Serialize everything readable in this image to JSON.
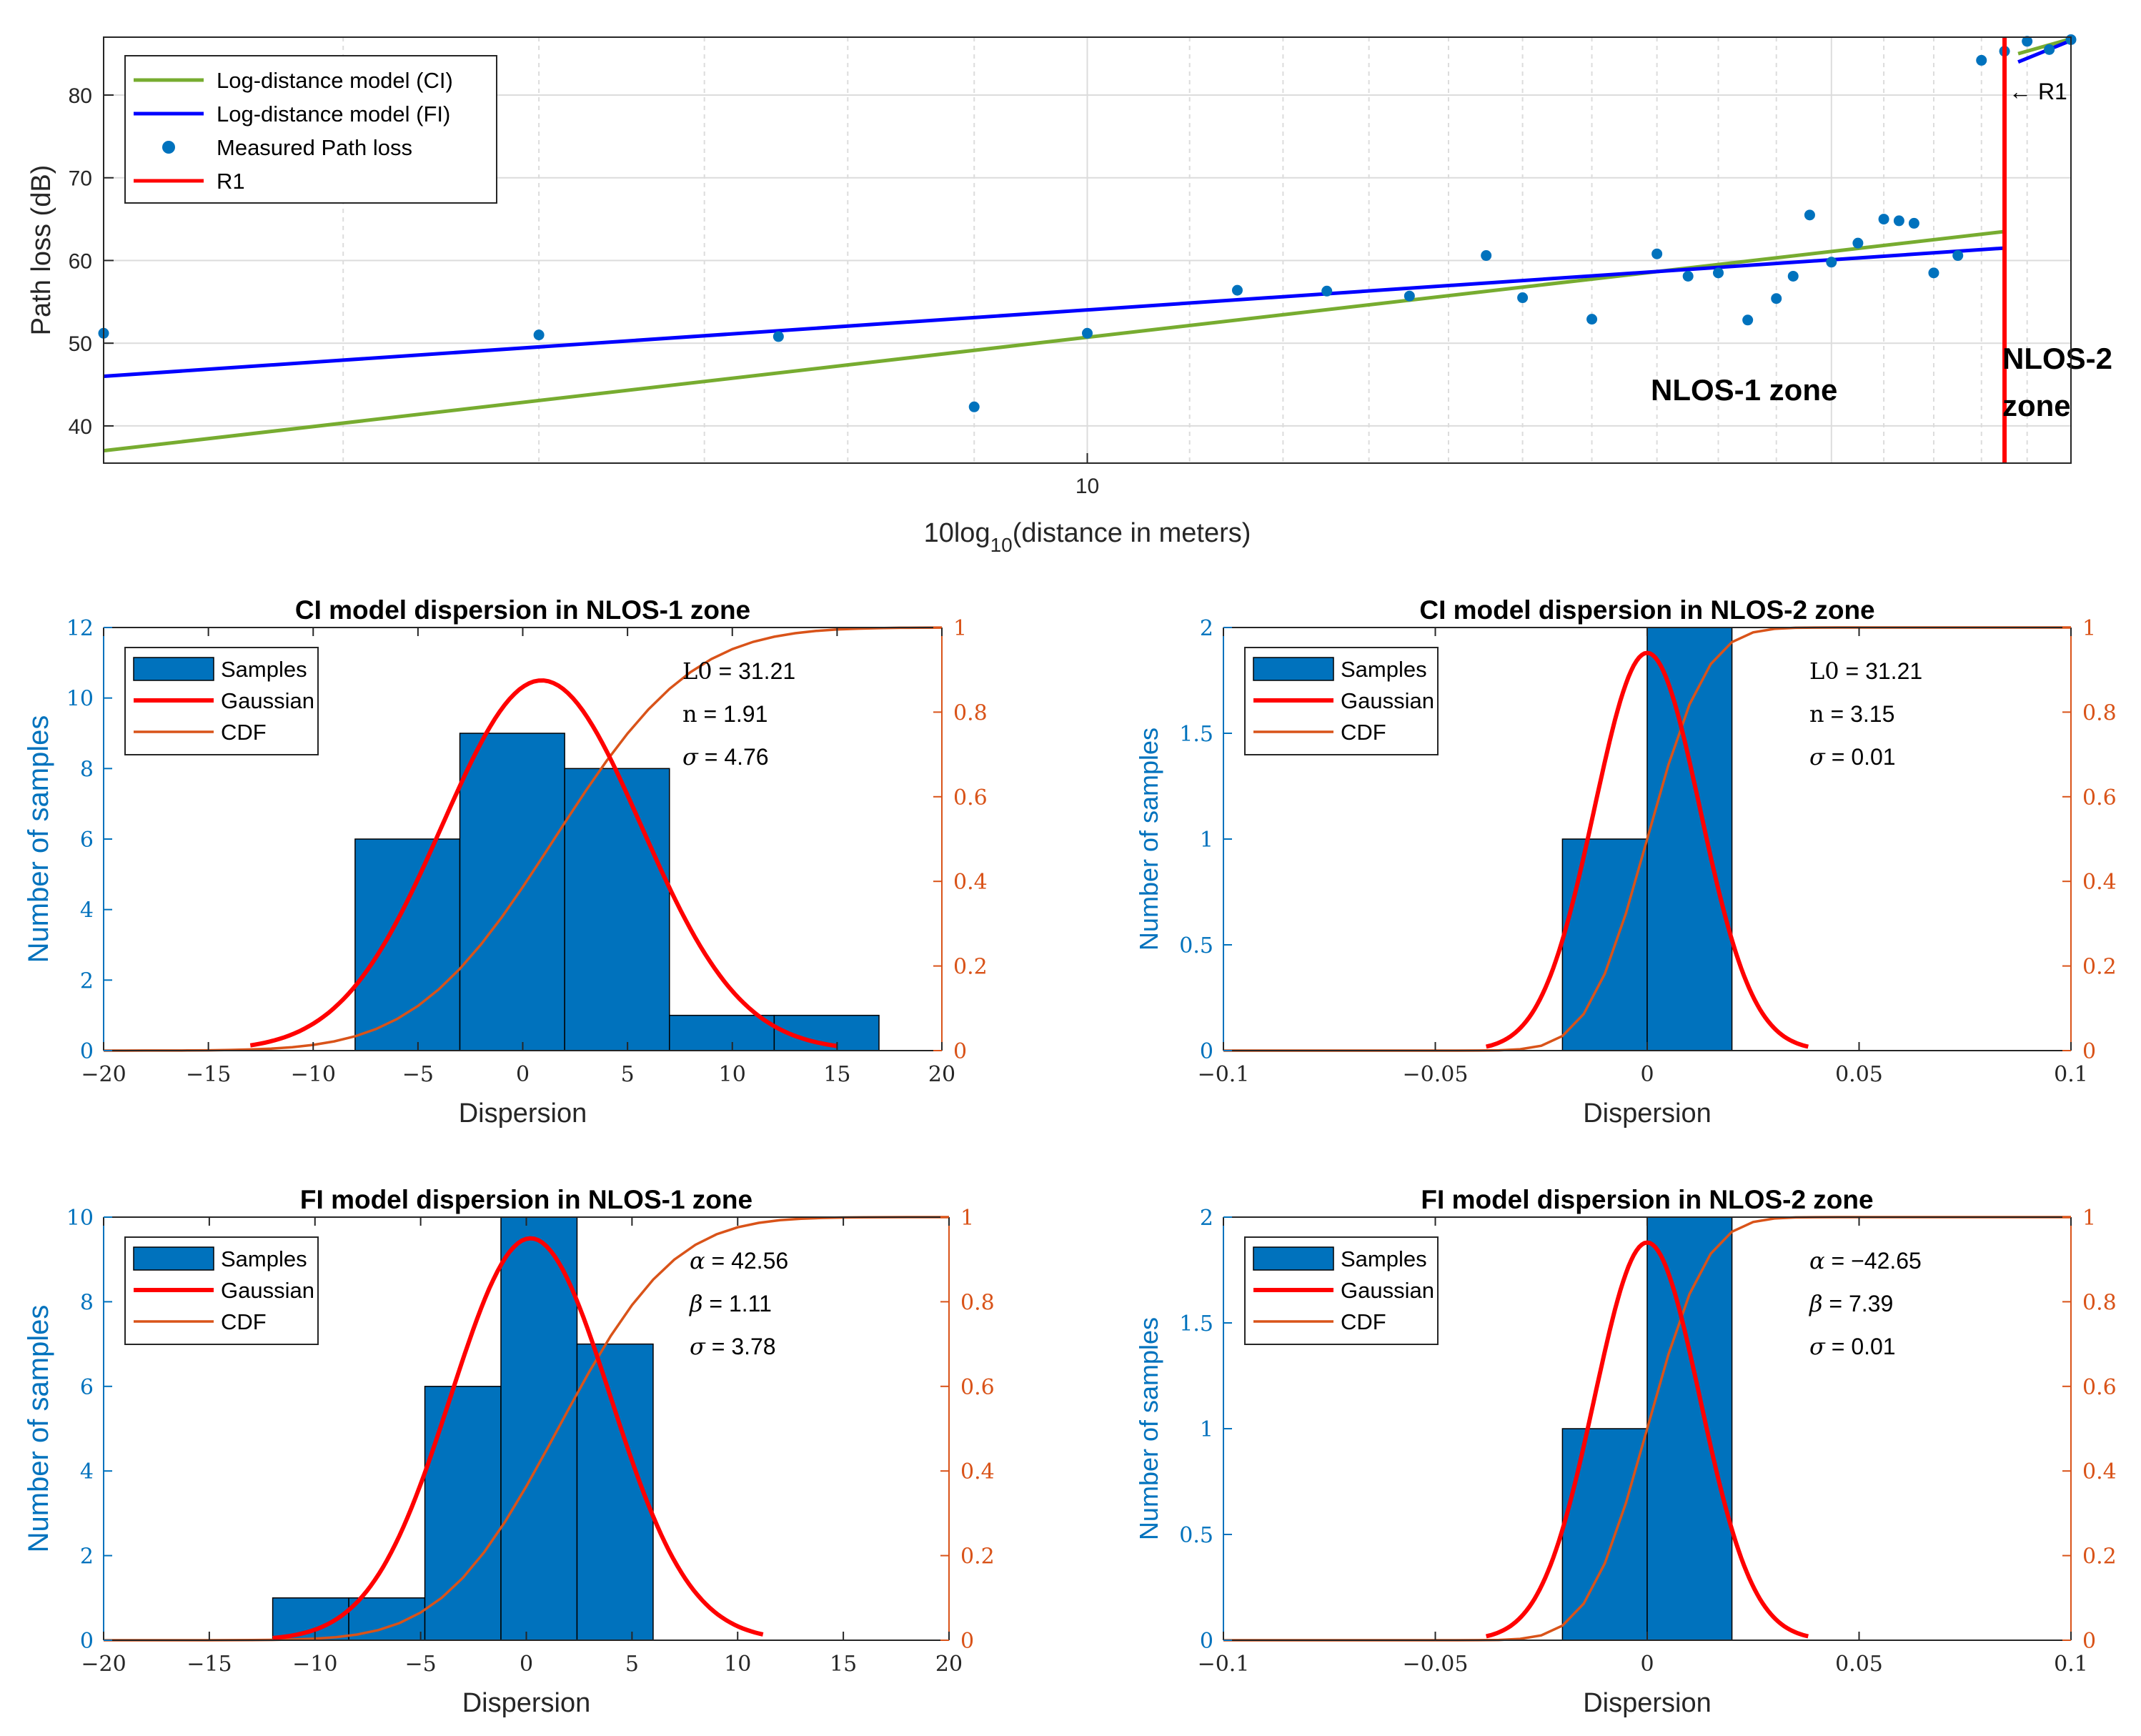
{
  "colors": {
    "ci": "#77ac30",
    "fi": "#0000ff",
    "measured": "#0072bd",
    "r1": "#ff0000",
    "bar": "#0072bd",
    "gauss": "#ff0000",
    "cdf": "#d95319",
    "left_axis": "#0072bd",
    "right_axis": "#d95319"
  },
  "chart_data": [
    {
      "id": "top",
      "type": "line",
      "xlabel_prefix": "10log",
      "xlabel_sub": "10",
      "xlabel_suffix": "(distance in meters)",
      "ylabel": "Path loss (dB)",
      "xscale": "log",
      "xlim": [
        4,
        25
      ],
      "ylim": [
        35.5,
        87
      ],
      "xtick_labels": [
        "10"
      ],
      "xtick_values": [
        10
      ],
      "yticks": [
        40,
        50,
        60,
        70,
        80
      ],
      "grid": true,
      "legend": [
        "Log-distance model (CI)",
        "Log-distance model (FI)",
        "Measured Path loss",
        "R1"
      ],
      "legend_position": "top-left",
      "ci_model": {
        "x": [
          4,
          23.5
        ],
        "y": [
          37.0,
          63.5
        ]
      },
      "fi_model": {
        "x": [
          4,
          23.5
        ],
        "y": [
          46.0,
          61.5
        ]
      },
      "ci_model_zone2": {
        "x": [
          23.8,
          25
        ],
        "y": [
          85.0,
          86.8
        ]
      },
      "fi_model_zone2": {
        "x": [
          23.8,
          25
        ],
        "y": [
          84.0,
          86.6
        ]
      },
      "r1_x": 23.5,
      "r1_label": "← R1",
      "measured": {
        "x": [
          4.0,
          6.0,
          7.5,
          9.0,
          10.0,
          11.5,
          12.5,
          13.5,
          14.5,
          15.0,
          16.0,
          17.0,
          17.5,
          18.0,
          18.5,
          19.0,
          19.3,
          19.6,
          20.0,
          20.5,
          21.0,
          21.3,
          21.6,
          22.0,
          22.5,
          23.0,
          23.5,
          24.0,
          24.5,
          25.0
        ],
        "y": [
          51.2,
          51.0,
          50.8,
          42.3,
          51.2,
          56.4,
          56.3,
          55.7,
          60.6,
          55.5,
          52.9,
          60.8,
          58.1,
          58.5,
          52.8,
          55.4,
          58.1,
          65.5,
          59.8,
          62.1,
          65.0,
          64.8,
          64.5,
          58.5,
          60.6,
          84.2,
          85.3,
          86.5,
          85.5,
          86.7
        ]
      },
      "zone_labels": [
        "NLOS-1 zone",
        "NLOS-2",
        "zone"
      ]
    },
    {
      "id": "ci1",
      "type": "bar",
      "title": "CI model dispersion in NLOS-1 zone",
      "xlabel": "Dispersion",
      "ylabel": "Number of samples",
      "xlim": [
        -20,
        20
      ],
      "ylim": [
        0,
        12
      ],
      "xticks": [
        -20,
        -15,
        -10,
        -5,
        0,
        5,
        10,
        15,
        20
      ],
      "xtick_labels": [
        "−20",
        "−15",
        "−10",
        "−5",
        "0",
        "5",
        "10",
        "15",
        "20"
      ],
      "yticks": [
        0,
        2,
        4,
        6,
        8,
        10,
        12
      ],
      "ytick_labels": [
        "0",
        "2",
        "4",
        "6",
        "8",
        "10",
        "12"
      ],
      "y2ticks": [
        0,
        0.2,
        0.4,
        0.6,
        0.8,
        1
      ],
      "y2tick_labels": [
        "0",
        "0.2",
        "0.4",
        "0.6",
        "0.8",
        "1"
      ],
      "bins": [
        -8,
        -3,
        2,
        7,
        12,
        17
      ],
      "counts": [
        6,
        9,
        8,
        1,
        1
      ],
      "gauss": {
        "mu": 0.9,
        "sigma": 4.76,
        "peak": 10.5,
        "range": [
          -13,
          15
        ]
      },
      "cdf": {
        "mu": 1.5,
        "sigma": 5.2
      },
      "legend": [
        "Samples",
        "Gaussian",
        "CDF"
      ],
      "annotations": [
        {
          "sym": "L0",
          "text": " = 31.21"
        },
        {
          "sym": "n",
          "text": "  = 1.91"
        },
        {
          "sym": "σ",
          "text": "  = 4.76"
        }
      ]
    },
    {
      "id": "ci2",
      "type": "bar",
      "title": "CI model dispersion in NLOS-2 zone",
      "xlabel": "Dispersion",
      "ylabel": "Number of samples",
      "xlim": [
        -0.1,
        0.1
      ],
      "ylim": [
        0,
        2
      ],
      "xticks": [
        -0.1,
        -0.05,
        0,
        0.05,
        0.1
      ],
      "xtick_labels": [
        "−0.1",
        "−0.05",
        "0",
        "0.05",
        "0.1"
      ],
      "yticks": [
        0,
        0.5,
        1,
        1.5,
        2
      ],
      "ytick_labels": [
        "0",
        "0.5",
        "1",
        "1.5",
        "2"
      ],
      "y2ticks": [
        0,
        0.2,
        0.4,
        0.6,
        0.8,
        1
      ],
      "y2tick_labels": [
        "0",
        "0.2",
        "0.4",
        "0.6",
        "0.8",
        "1"
      ],
      "bins": [
        -0.02,
        0,
        0.02
      ],
      "counts": [
        1,
        2
      ],
      "gauss": {
        "mu": 0,
        "sigma": 0.0125,
        "peak": 1.88,
        "range": [
          -0.038,
          0.038
        ]
      },
      "cdf": {
        "mu": 0,
        "sigma": 0.011
      },
      "legend": [
        "Samples",
        "Gaussian",
        "CDF"
      ],
      "annotations": [
        {
          "sym": "L0",
          "text": " = 31.21"
        },
        {
          "sym": "n",
          "text": "  = 3.15"
        },
        {
          "sym": "σ",
          "text": "  = 0.01"
        }
      ]
    },
    {
      "id": "fi1",
      "type": "bar",
      "title": "FI model dispersion in NLOS-1 zone",
      "xlabel": "Dispersion",
      "ylabel": "Number of samples",
      "xlim": [
        -20,
        20
      ],
      "ylim": [
        0,
        10
      ],
      "xticks": [
        -20,
        -15,
        -10,
        -5,
        0,
        5,
        10,
        15,
        20
      ],
      "xtick_labels": [
        "−20",
        "−15",
        "−10",
        "−5",
        "0",
        "5",
        "10",
        "15",
        "20"
      ],
      "yticks": [
        0,
        2,
        4,
        6,
        8,
        10
      ],
      "ytick_labels": [
        "0",
        "2",
        "4",
        "6",
        "8",
        "10"
      ],
      "y2ticks": [
        0,
        0.2,
        0.4,
        0.6,
        0.8,
        1
      ],
      "y2tick_labels": [
        "0",
        "0.2",
        "0.4",
        "0.6",
        "0.8",
        "1"
      ],
      "bins": [
        -12,
        -8.4,
        -4.8,
        -1.2,
        2.4,
        6
      ],
      "counts": [
        1,
        1,
        6,
        10,
        7
      ],
      "gauss": {
        "mu": 0.2,
        "sigma": 3.78,
        "peak": 9.5,
        "range": [
          -12,
          11.2
        ]
      },
      "cdf": {
        "mu": 1.5,
        "sigma": 4.3
      },
      "legend": [
        "Samples",
        "Gaussian",
        "CDF"
      ],
      "annotations": [
        {
          "sym": "α",
          "text": " = 42.56"
        },
        {
          "sym": "β",
          "text": "  = 1.11"
        },
        {
          "sym": "σ",
          "text": "  = 3.78"
        }
      ]
    },
    {
      "id": "fi2",
      "type": "bar",
      "title": "FI model dispersion in NLOS-2 zone",
      "xlabel": "Dispersion",
      "ylabel": "Number of samples",
      "xlim": [
        -0.1,
        0.1
      ],
      "ylim": [
        0,
        2
      ],
      "xticks": [
        -0.1,
        -0.05,
        0,
        0.05,
        0.1
      ],
      "xtick_labels": [
        "−0.1",
        "−0.05",
        "0",
        "0.05",
        "0.1"
      ],
      "yticks": [
        0,
        0.5,
        1,
        1.5,
        2
      ],
      "ytick_labels": [
        "0",
        "0.5",
        "1",
        "1.5",
        "2"
      ],
      "y2ticks": [
        0,
        0.2,
        0.4,
        0.6,
        0.8,
        1
      ],
      "y2tick_labels": [
        "0",
        "0.2",
        "0.4",
        "0.6",
        "0.8",
        "1"
      ],
      "bins": [
        -0.02,
        0,
        0.02
      ],
      "counts": [
        1,
        2
      ],
      "gauss": {
        "mu": 0,
        "sigma": 0.0125,
        "peak": 1.88,
        "range": [
          -0.038,
          0.038
        ]
      },
      "cdf": {
        "mu": 0,
        "sigma": 0.011
      },
      "legend": [
        "Samples",
        "Gaussian",
        "CDF"
      ],
      "annotations": [
        {
          "sym": "α",
          "text": " = −42.65"
        },
        {
          "sym": "β",
          "text": "  = 7.39"
        },
        {
          "sym": "σ",
          "text": "  = 0.01"
        }
      ]
    }
  ]
}
